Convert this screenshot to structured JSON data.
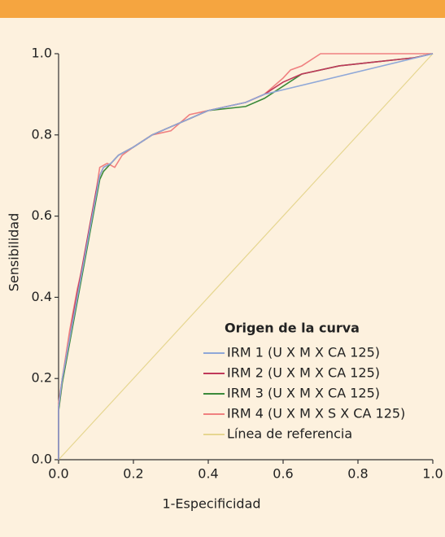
{
  "chart_data": {
    "type": "line",
    "xlabel": "1-Especificidad",
    "ylabel": "Sensibilidad",
    "legend_title": "Origen de la curva",
    "legend": "lower right",
    "xlim": [
      0,
      1
    ],
    "ylim": [
      0,
      1
    ],
    "xticks": [
      {
        "value": 0,
        "label": "0.0"
      },
      0.2,
      0.4,
      0.6,
      0.8,
      {
        "value": 1,
        "label": "1.0"
      }
    ],
    "yticks": [
      {
        "value": 0,
        "label": "0.0"
      },
      0.2,
      0.4,
      0.6,
      0.8,
      {
        "value": 1,
        "label": "1.0"
      }
    ],
    "series": [
      {
        "name": "IRM 1 (U X M X CA 125)",
        "color": "#8fa8d8",
        "x": [
          0,
          0,
          0.01,
          0.02,
          0.03,
          0.04,
          0.05,
          0.06,
          0.07,
          0.08,
          0.09,
          0.1,
          0.11,
          0.12,
          0.14,
          0.16,
          0.2,
          0.25,
          0.3,
          0.35,
          0.4,
          0.5,
          0.55,
          1
        ],
        "values": [
          0,
          0.13,
          0.2,
          0.25,
          0.3,
          0.35,
          0.4,
          0.45,
          0.5,
          0.55,
          0.6,
          0.65,
          0.7,
          0.72,
          0.73,
          0.75,
          0.77,
          0.8,
          0.82,
          0.84,
          0.86,
          0.88,
          0.9,
          1
        ]
      },
      {
        "name": "IRM 2 (U X M X CA 125)",
        "color": "#c0395a",
        "x": [
          0,
          0,
          0.01,
          0.02,
          0.03,
          0.04,
          0.05,
          0.06,
          0.07,
          0.08,
          0.09,
          0.1,
          0.11,
          0.12,
          0.14,
          0.16,
          0.2,
          0.25,
          0.3,
          0.35,
          0.4,
          0.5,
          0.55,
          0.6,
          0.65,
          0.75,
          0.85,
          0.95,
          1
        ],
        "values": [
          0,
          0.13,
          0.2,
          0.25,
          0.3,
          0.36,
          0.41,
          0.46,
          0.51,
          0.56,
          0.61,
          0.66,
          0.7,
          0.72,
          0.73,
          0.75,
          0.77,
          0.8,
          0.82,
          0.84,
          0.86,
          0.88,
          0.9,
          0.93,
          0.95,
          0.97,
          0.98,
          0.99,
          1
        ]
      },
      {
        "name": "IRM 3 (U X M X CA 125)",
        "color": "#3a8a3a",
        "x": [
          0,
          0,
          0.01,
          0.02,
          0.03,
          0.04,
          0.05,
          0.06,
          0.07,
          0.08,
          0.09,
          0.1,
          0.11,
          0.12,
          0.14,
          0.16,
          0.2,
          0.25,
          0.3,
          0.35,
          0.4,
          0.5,
          0.55,
          0.6,
          0.65,
          0.75,
          0.85,
          0.95,
          1
        ],
        "values": [
          0,
          0.12,
          0.19,
          0.24,
          0.29,
          0.34,
          0.39,
          0.44,
          0.49,
          0.54,
          0.59,
          0.64,
          0.69,
          0.71,
          0.73,
          0.75,
          0.77,
          0.8,
          0.82,
          0.84,
          0.86,
          0.87,
          0.89,
          0.92,
          0.95,
          0.97,
          0.98,
          0.99,
          1
        ]
      },
      {
        "name": "IRM 4 (U X M X S X CA 125)",
        "color": "#f08080",
        "x": [
          0,
          0,
          0.01,
          0.02,
          0.03,
          0.05,
          0.07,
          0.09,
          0.1,
          0.11,
          0.13,
          0.15,
          0.17,
          0.2,
          0.25,
          0.3,
          0.35,
          0.4,
          0.45,
          0.5,
          0.55,
          0.6,
          0.62,
          0.65,
          0.7,
          1
        ],
        "values": [
          0,
          0.14,
          0.2,
          0.26,
          0.32,
          0.42,
          0.5,
          0.6,
          0.66,
          0.72,
          0.73,
          0.72,
          0.75,
          0.77,
          0.8,
          0.81,
          0.85,
          0.86,
          0.87,
          0.88,
          0.9,
          0.94,
          0.96,
          0.97,
          1,
          1
        ]
      },
      {
        "name": "Línea de referencia",
        "color": "#e6d690",
        "x": [
          0,
          1
        ],
        "values": [
          0,
          1
        ]
      }
    ]
  }
}
